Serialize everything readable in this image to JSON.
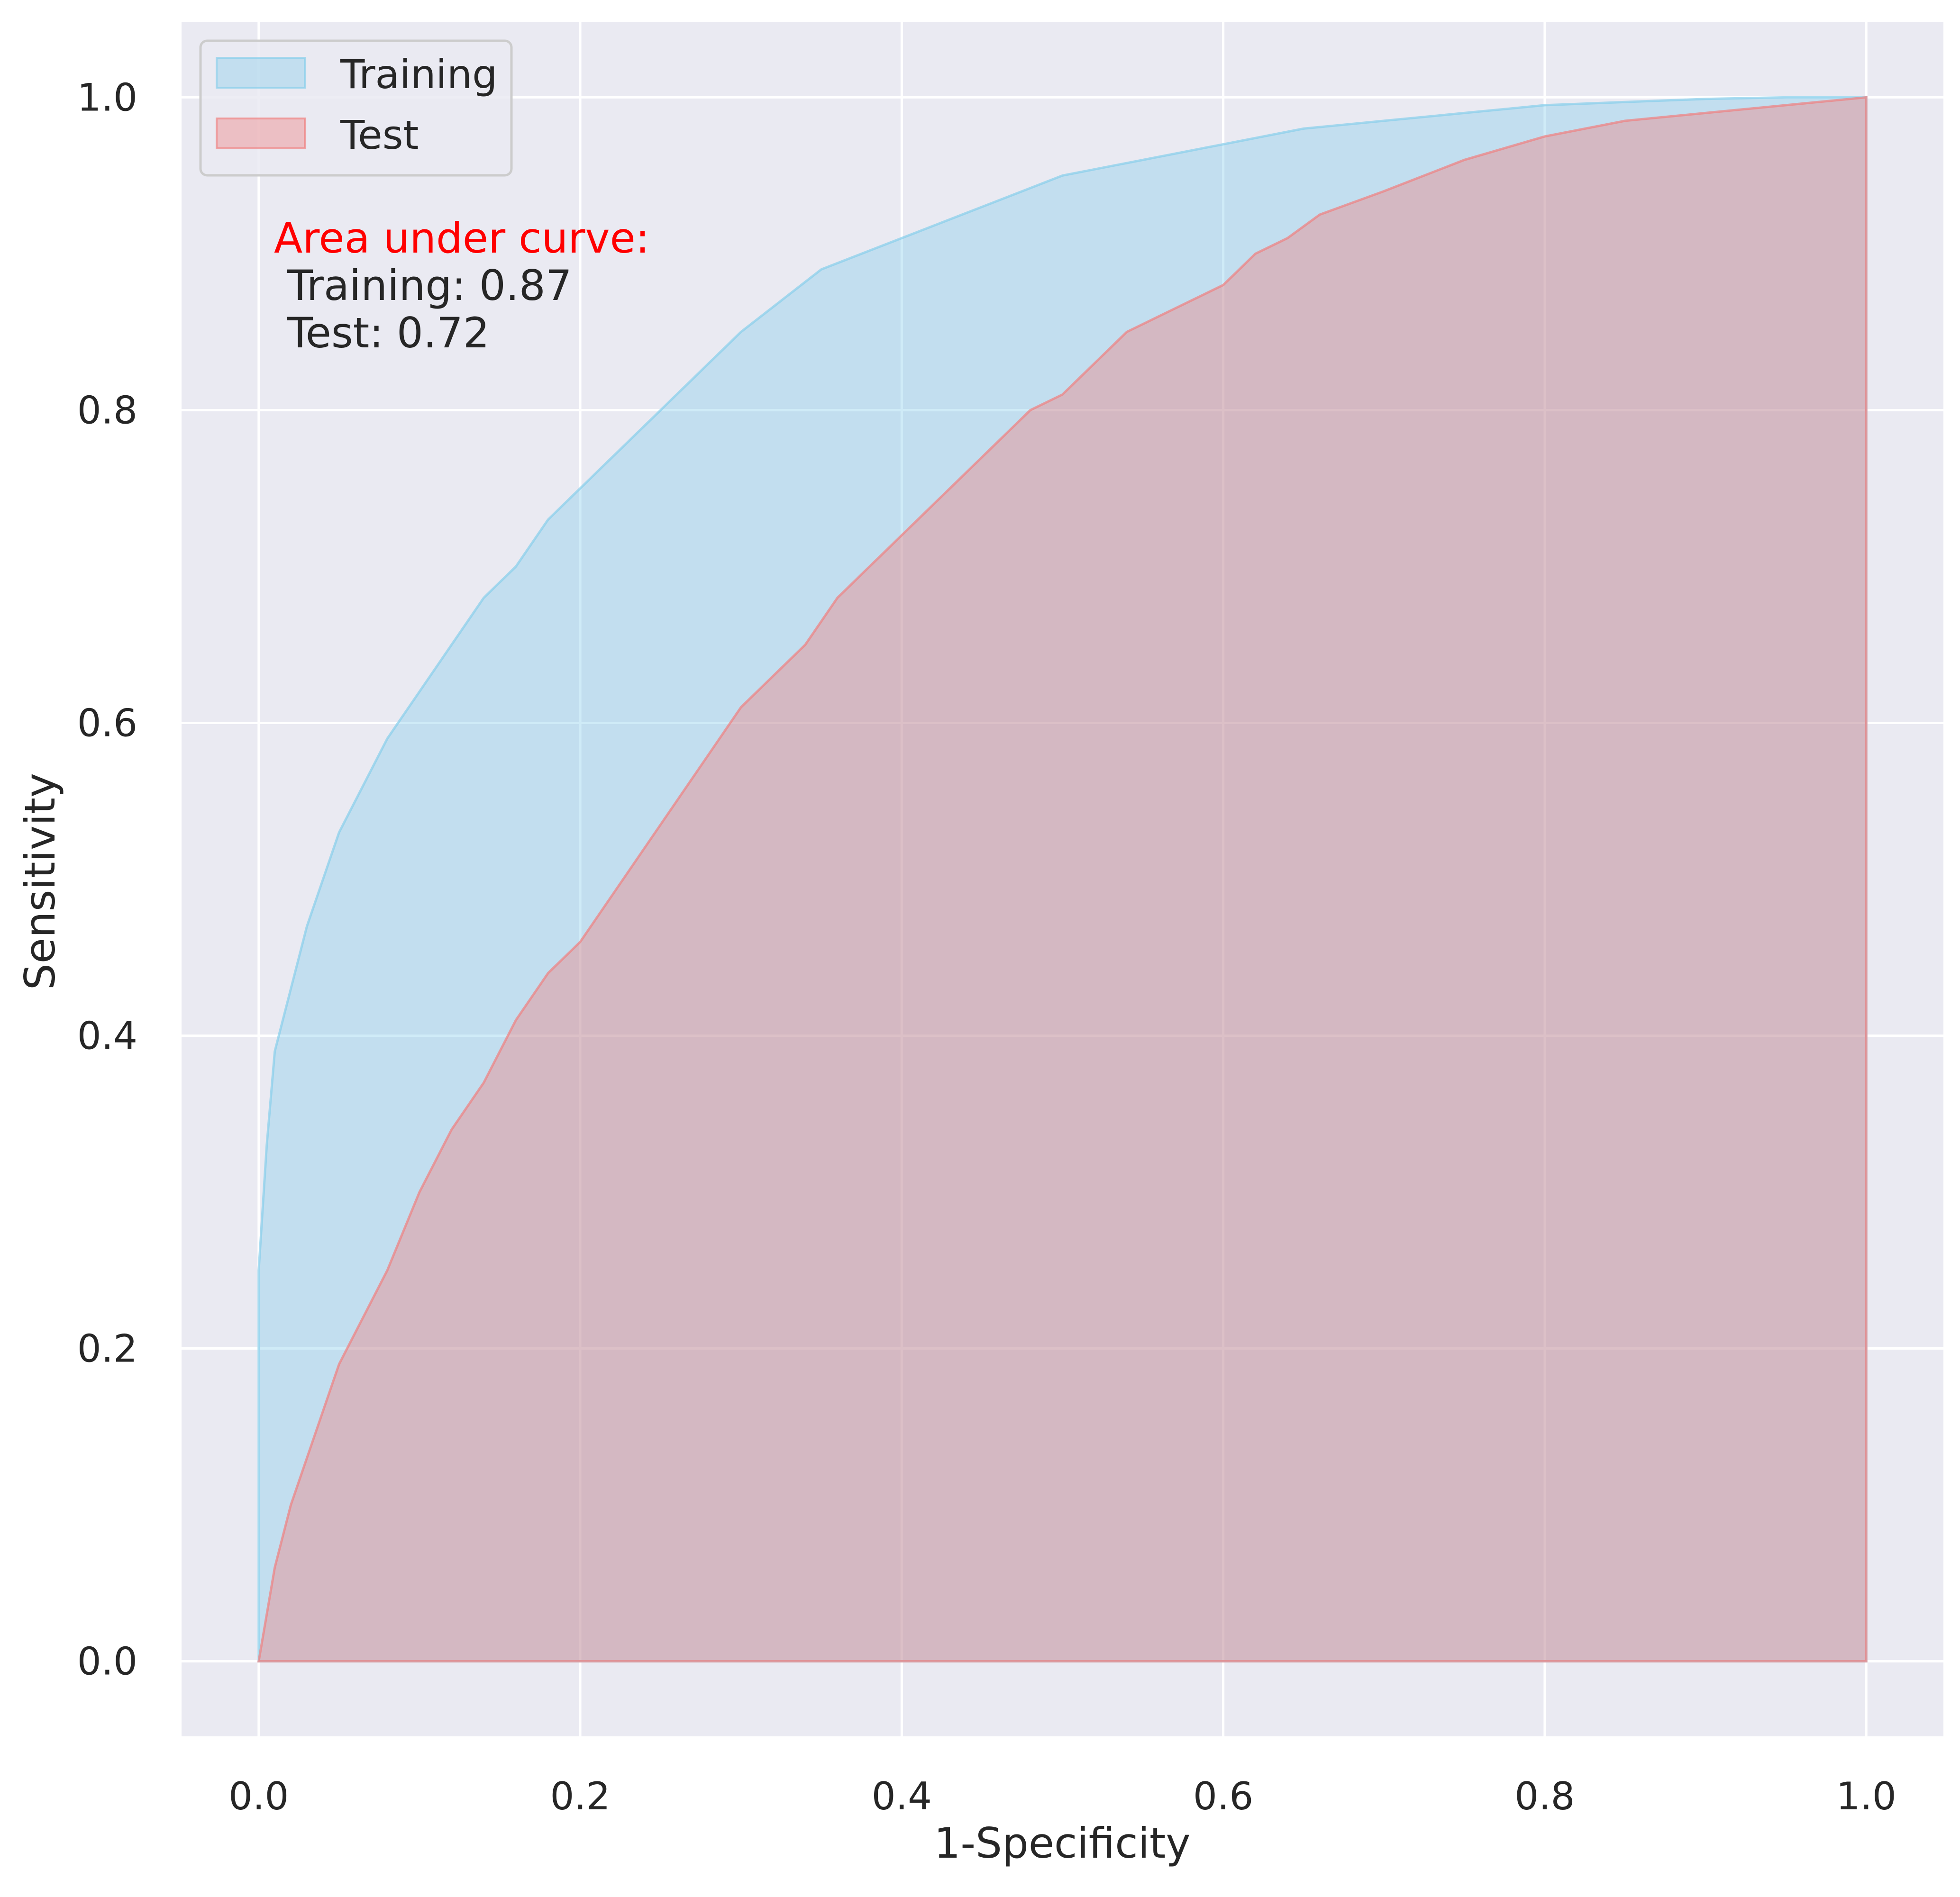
{
  "chart_data": {
    "type": "area",
    "xlabel": "1-Specificity",
    "ylabel": "Sensitivity",
    "xlim": [
      -0.048,
      1.048
    ],
    "ylim": [
      -0.048,
      1.048
    ],
    "x_ticks": [
      "0.0",
      "0.2",
      "0.4",
      "0.6",
      "0.8",
      "1.0"
    ],
    "y_ticks": [
      "0.0",
      "0.2",
      "0.4",
      "0.6",
      "0.8",
      "1.0"
    ],
    "grid": true,
    "legend_position": "top-left",
    "series": [
      {
        "name": "Training",
        "color": "#87CEEB",
        "points": [
          [
            0,
            0
          ],
          [
            0,
            0.25
          ],
          [
            0.005,
            0.33
          ],
          [
            0.01,
            0.39
          ],
          [
            0.02,
            0.43
          ],
          [
            0.03,
            0.47
          ],
          [
            0.04,
            0.5
          ],
          [
            0.05,
            0.53
          ],
          [
            0.06,
            0.55
          ],
          [
            0.07,
            0.57
          ],
          [
            0.08,
            0.59
          ],
          [
            0.1,
            0.62
          ],
          [
            0.12,
            0.65
          ],
          [
            0.14,
            0.68
          ],
          [
            0.16,
            0.7
          ],
          [
            0.18,
            0.73
          ],
          [
            0.2,
            0.75
          ],
          [
            0.22,
            0.77
          ],
          [
            0.24,
            0.79
          ],
          [
            0.26,
            0.81
          ],
          [
            0.28,
            0.83
          ],
          [
            0.3,
            0.85
          ],
          [
            0.35,
            0.89
          ],
          [
            0.4,
            0.91
          ],
          [
            0.45,
            0.93
          ],
          [
            0.5,
            0.95
          ],
          [
            0.55,
            0.96
          ],
          [
            0.6,
            0.97
          ],
          [
            0.65,
            0.98
          ],
          [
            0.7,
            0.985
          ],
          [
            0.75,
            0.99
          ],
          [
            0.8,
            0.995
          ],
          [
            0.85,
            0.997
          ],
          [
            0.9,
            0.999
          ],
          [
            0.95,
            1.0
          ],
          [
            1.0,
            1.0
          ]
        ]
      },
      {
        "name": "Test",
        "color": "#F08080",
        "points": [
          [
            0,
            0
          ],
          [
            0.005,
            0.03
          ],
          [
            0.01,
            0.06
          ],
          [
            0.02,
            0.1
          ],
          [
            0.03,
            0.13
          ],
          [
            0.04,
            0.16
          ],
          [
            0.05,
            0.19
          ],
          [
            0.06,
            0.21
          ],
          [
            0.07,
            0.23
          ],
          [
            0.08,
            0.25
          ],
          [
            0.1,
            0.3
          ],
          [
            0.12,
            0.34
          ],
          [
            0.14,
            0.37
          ],
          [
            0.16,
            0.41
          ],
          [
            0.18,
            0.44
          ],
          [
            0.2,
            0.46
          ],
          [
            0.22,
            0.49
          ],
          [
            0.24,
            0.52
          ],
          [
            0.26,
            0.55
          ],
          [
            0.28,
            0.58
          ],
          [
            0.3,
            0.61
          ],
          [
            0.32,
            0.63
          ],
          [
            0.34,
            0.65
          ],
          [
            0.36,
            0.68
          ],
          [
            0.38,
            0.7
          ],
          [
            0.4,
            0.72
          ],
          [
            0.42,
            0.74
          ],
          [
            0.44,
            0.76
          ],
          [
            0.46,
            0.78
          ],
          [
            0.48,
            0.8
          ],
          [
            0.5,
            0.81
          ],
          [
            0.52,
            0.83
          ],
          [
            0.54,
            0.85
          ],
          [
            0.56,
            0.86
          ],
          [
            0.58,
            0.87
          ],
          [
            0.6,
            0.88
          ],
          [
            0.62,
            0.9
          ],
          [
            0.64,
            0.91
          ],
          [
            0.66,
            0.925
          ],
          [
            0.7,
            0.94
          ],
          [
            0.75,
            0.96
          ],
          [
            0.8,
            0.975
          ],
          [
            0.85,
            0.985
          ],
          [
            0.9,
            0.99
          ],
          [
            0.95,
            0.995
          ],
          [
            1.0,
            1.0
          ]
        ]
      }
    ],
    "annotation": {
      "heading": "Area under curve:",
      "heading_color": "#ff0000",
      "lines": [
        " Training: 0.87",
        " Test: 0.72"
      ]
    }
  }
}
